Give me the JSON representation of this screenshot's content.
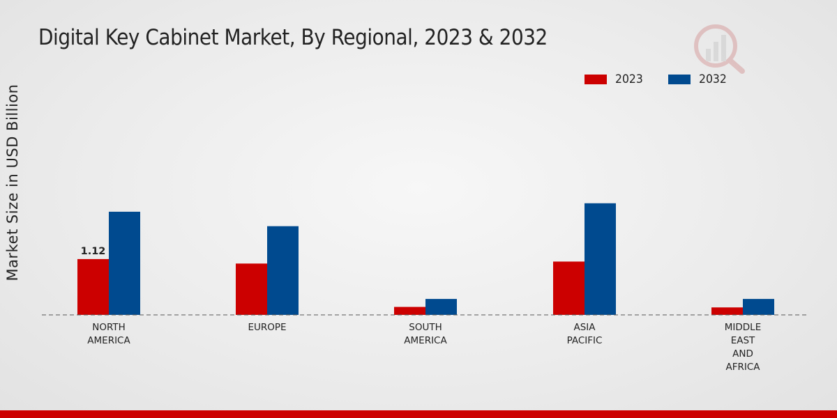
{
  "chart_data": {
    "type": "bar",
    "title": "Digital Key Cabinet Market, By Regional, 2023 & 2032",
    "ylabel": "Market Size in USD Billion",
    "xlabel": "",
    "categories": [
      [
        "NORTH",
        "AMERICA"
      ],
      [
        "EUROPE"
      ],
      [
        "SOUTH",
        "AMERICA"
      ],
      [
        "ASIA",
        "PACIFIC"
      ],
      [
        "MIDDLE",
        "EAST",
        "AND",
        "AFRICA"
      ]
    ],
    "series": [
      {
        "name": "2023",
        "color": "#cc0000",
        "values": [
          1.12,
          1.03,
          0.16,
          1.07,
          0.15
        ]
      },
      {
        "name": "2032",
        "color": "#004a8f",
        "values": [
          2.07,
          1.78,
          0.32,
          2.24,
          0.32
        ]
      }
    ],
    "data_labels": [
      {
        "series": 0,
        "index": 0,
        "text": "1.12"
      }
    ],
    "ylim": [
      0,
      5.2
    ],
    "grid": false,
    "legend_position": "top-right"
  }
}
